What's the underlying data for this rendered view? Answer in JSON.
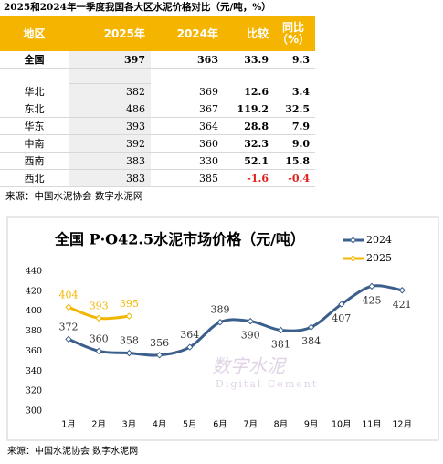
{
  "table": {
    "title": "2025和2024年一季度我国各大区水泥价格对比（元/吨，%）",
    "header": [
      "地区",
      "2025年",
      "2024年",
      "比较",
      "同比\n（%）"
    ],
    "rows": [
      [
        "全国",
        "397",
        "363",
        "33.9",
        "9.3"
      ],
      [
        "华北",
        "382",
        "369",
        "12.6",
        "3.4"
      ],
      [
        "东北",
        "486",
        "367",
        "119.2",
        "32.5"
      ],
      [
        "华东",
        "393",
        "364",
        "28.8",
        "7.9"
      ],
      [
        "中南",
        "392",
        "360",
        "32.3",
        "9.0"
      ],
      [
        "西南",
        "383",
        "330",
        "52.1",
        "15.8"
      ],
      [
        "西北",
        "383",
        "385",
        "-1.6",
        "-0.4"
      ]
    ],
    "source": "来源：中国水泥协会  数字水泥网"
  },
  "chart_data": {
    "type": "line",
    "title": "全国 P·O42.5水泥市场价格（元/吨）",
    "categories": [
      "1月",
      "2月",
      "3月",
      "4月",
      "5月",
      "6月",
      "7月",
      "8月",
      "9月",
      "10月",
      "11月",
      "12月"
    ],
    "series": [
      {
        "name": "2024",
        "color": "#3b5f8c",
        "values": [
          372,
          360,
          358,
          356,
          364,
          389,
          390,
          381,
          384,
          407,
          425,
          421
        ]
      },
      {
        "name": "2025",
        "color": "#f3b600",
        "values": [
          404,
          393,
          395,
          null,
          null,
          null,
          null,
          null,
          null,
          null,
          null,
          null
        ]
      }
    ],
    "ylim": [
      300,
      440
    ],
    "yticks": [
      300,
      320,
      340,
      360,
      380,
      400,
      420,
      440
    ],
    "grid": false,
    "watermark": [
      "数字水泥",
      "Digital Cement"
    ],
    "source": "来源：中国水泥协会  数字水泥网"
  }
}
